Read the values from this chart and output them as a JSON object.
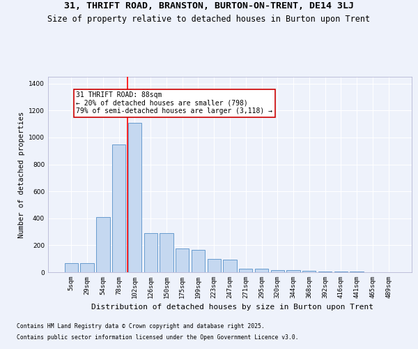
{
  "title": "31, THRIFT ROAD, BRANSTON, BURTON-ON-TRENT, DE14 3LJ",
  "subtitle": "Size of property relative to detached houses in Burton upon Trent",
  "xlabel": "Distribution of detached houses by size in Burton upon Trent",
  "ylabel": "Number of detached properties",
  "footer1": "Contains HM Land Registry data © Crown copyright and database right 2025.",
  "footer2": "Contains public sector information licensed under the Open Government Licence v3.0.",
  "categories": [
    "5sqm",
    "29sqm",
    "54sqm",
    "78sqm",
    "102sqm",
    "126sqm",
    "150sqm",
    "175sqm",
    "199sqm",
    "223sqm",
    "247sqm",
    "271sqm",
    "295sqm",
    "320sqm",
    "344sqm",
    "368sqm",
    "392sqm",
    "416sqm",
    "441sqm",
    "465sqm",
    "489sqm"
  ],
  "values": [
    65,
    65,
    410,
    950,
    1110,
    290,
    290,
    175,
    165,
    100,
    95,
    25,
    25,
    15,
    15,
    10,
    5,
    5,
    5,
    2,
    2
  ],
  "bar_color": "#c5d8f0",
  "bar_edge_color": "#5590c8",
  "annotation_text_line1": "31 THRIFT ROAD: 88sqm",
  "annotation_text_line2": "← 20% of detached houses are smaller (798)",
  "annotation_text_line3": "79% of semi-detached houses are larger (3,118) →",
  "annotation_box_facecolor": "#ffffff",
  "annotation_border_color": "#cc0000",
  "red_line_x": 3.55,
  "ylim_max": 1450,
  "background_color": "#eef2fb",
  "grid_color": "#ffffff",
  "title_fontsize": 9.5,
  "subtitle_fontsize": 8.5,
  "ylabel_fontsize": 7.5,
  "xlabel_fontsize": 8,
  "tick_fontsize": 6.5,
  "annot_fontsize": 7,
  "footer_fontsize": 5.8
}
